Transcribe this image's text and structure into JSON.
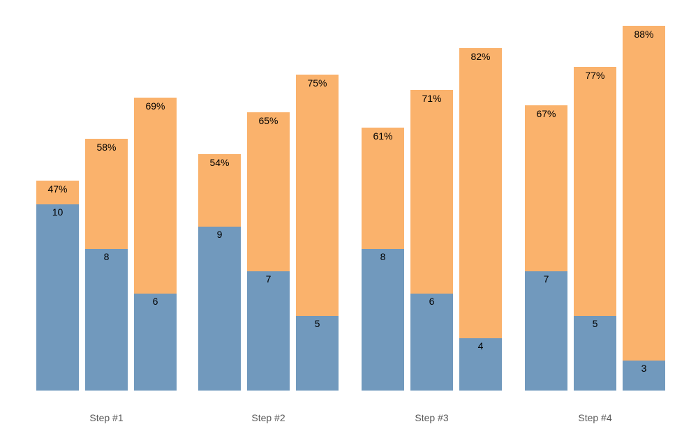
{
  "chart_data": {
    "type": "bar",
    "variant": "grouped-stacked-funnel",
    "title": "",
    "xlabel": "",
    "ylabel": "",
    "legend": "none",
    "axes_visible": false,
    "grid": false,
    "background": "#ffffff",
    "categories": [
      "Step #1",
      "Step #2",
      "Step #3",
      "Step #4"
    ],
    "series": [
      {
        "name": "count-segment",
        "role": "bottom",
        "color": "#7199bd"
      },
      {
        "name": "percent-segment",
        "role": "top",
        "color": "#fab26c"
      }
    ],
    "groups": [
      {
        "category": "Step #1",
        "bars": [
          {
            "count": 10,
            "count_label": "10",
            "percent": 47,
            "percent_label": "47%"
          },
          {
            "count": 8,
            "count_label": "8",
            "percent": 58,
            "percent_label": "58%"
          },
          {
            "count": 6,
            "count_label": "6",
            "percent": 69,
            "percent_label": "69%"
          }
        ]
      },
      {
        "category": "Step #2",
        "bars": [
          {
            "count": 9,
            "count_label": "9",
            "percent": 54,
            "percent_label": "54%"
          },
          {
            "count": 7,
            "count_label": "7",
            "percent": 65,
            "percent_label": "65%"
          },
          {
            "count": 5,
            "count_label": "5",
            "percent": 75,
            "percent_label": "75%"
          }
        ]
      },
      {
        "category": "Step #3",
        "bars": [
          {
            "count": 8,
            "count_label": "8",
            "percent": 61,
            "percent_label": "61%"
          },
          {
            "count": 6,
            "count_label": "6",
            "percent": 71,
            "percent_label": "71%"
          },
          {
            "count": 4,
            "count_label": "4",
            "percent": 82,
            "percent_label": "82%"
          }
        ]
      },
      {
        "category": "Step #4",
        "bars": [
          {
            "count": 7,
            "count_label": "7",
            "percent": 67,
            "percent_label": "67%"
          },
          {
            "count": 5,
            "count_label": "5",
            "percent": 77,
            "percent_label": "77%"
          },
          {
            "count": 3,
            "count_label": "3",
            "percent": 88,
            "percent_label": "88%"
          }
        ]
      }
    ],
    "colors": {
      "count_segment": "#7199bd",
      "percent_segment": "#fab26c",
      "count_label_text": "#000000",
      "percent_label_text": "#000000",
      "category_label_text": "#595959"
    }
  }
}
